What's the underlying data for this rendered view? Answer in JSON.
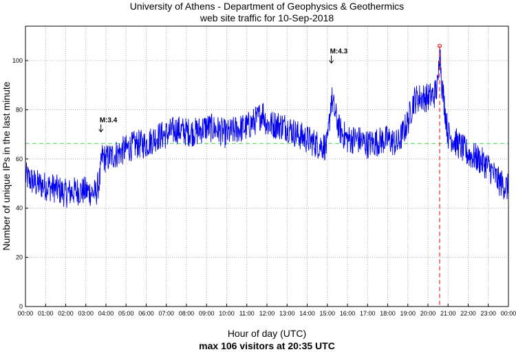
{
  "chart_data": {
    "type": "line",
    "title": "University of Athens - Department of Geophysics & Geothermics",
    "subtitle": "web site traffic for 10-Sep-2018",
    "xlabel": "Hour of day (UTC)",
    "ylabel": "Number of unique IPs in the last minute",
    "footer": "max 106 visitors at 20:35 UTC",
    "x_tick_labels": [
      "00:00",
      "01:00",
      "02:00",
      "03:00",
      "04:00",
      "05:00",
      "06:00",
      "07:00",
      "08:00",
      "09:00",
      "10:00",
      "11:00",
      "12:00",
      "13:00",
      "14:00",
      "15:00",
      "16:00",
      "17:00",
      "18:00",
      "19:00",
      "20:00",
      "21:00",
      "22:00",
      "23:00",
      "00:00"
    ],
    "y_ticks": [
      0,
      20,
      40,
      60,
      80,
      100
    ],
    "xlim_hours": [
      0,
      24
    ],
    "ylim": [
      0,
      114
    ],
    "grid": true,
    "mean_line": 66.3,
    "max_marker": {
      "hour": 20.583,
      "value": 106,
      "label_time": "20:35"
    },
    "annotations": [
      {
        "text": "M:3.4",
        "hour": 3.75,
        "value": 71
      },
      {
        "text": "M:4.3",
        "hour": 15.2,
        "value": 99
      }
    ],
    "colors": {
      "series": "#0000ee",
      "mean": "#55dd55",
      "max": "#ee2222",
      "grid": "#999999"
    },
    "series": [
      {
        "hours": [
          0,
          0.5,
          1,
          1.5,
          2,
          2.5,
          3,
          3.5,
          3.7,
          3.8,
          4,
          4.5,
          5,
          5.5,
          6,
          6.5,
          7,
          7.5,
          8,
          8.5,
          9,
          9.5,
          10,
          10.5,
          11,
          11.5,
          11.8,
          12,
          12.5,
          13,
          13.5,
          14,
          14.5,
          15,
          15.2,
          15.4,
          15.6,
          16,
          16.5,
          17,
          17.5,
          18,
          18.5,
          19,
          19.3,
          19.6,
          20,
          20.3,
          20.5,
          20.58,
          20.7,
          21,
          21.5,
          22,
          22.5,
          23,
          23.5,
          24
        ],
        "values": [
          53,
          50,
          49,
          48,
          46,
          47,
          47,
          46,
          52,
          61,
          60,
          62,
          64,
          66,
          66,
          69,
          70,
          72,
          71,
          71,
          73,
          72,
          70,
          72,
          73,
          76,
          79,
          74,
          74,
          73,
          70,
          68,
          66,
          65,
          85,
          78,
          72,
          68,
          68,
          66,
          67,
          68,
          66,
          75,
          84,
          85,
          85,
          86,
          90,
          106,
          90,
          70,
          66,
          62,
          60,
          57,
          51,
          48
        ]
      }
    ]
  }
}
